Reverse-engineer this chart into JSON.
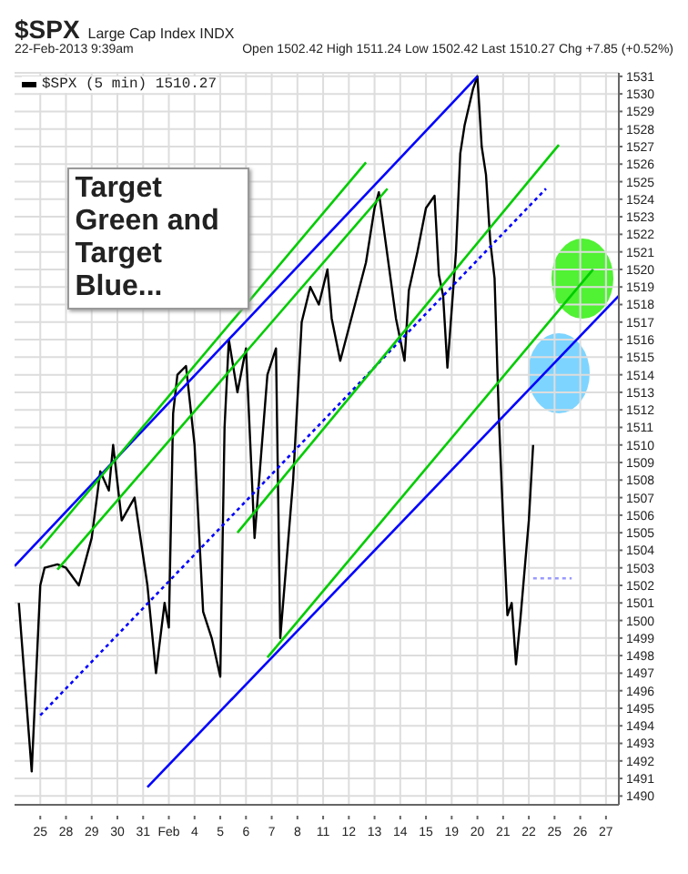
{
  "chart_data": {
    "type": "line",
    "title": "$SPX",
    "subtitle": "Large Cap Index INDX",
    "annotations": [
      "22-Feb-2013 9:39am",
      "Open 1502.42 High 1511.24 Low 1502.42 Last 1510.27 Chg +7.85 (+0.52%)",
      "Target Green and Target Blue..."
    ],
    "categories": [
      null,
      null,
      null,
      null,
      null,
      null,
      "25",
      null,
      null,
      null,
      null,
      null,
      "28",
      null,
      null,
      null,
      null,
      null,
      "29",
      null,
      null,
      null,
      null,
      null,
      "30",
      null,
      null,
      null,
      null,
      null,
      "31",
      null,
      null,
      null,
      null,
      null,
      "Feb",
      null,
      null,
      null,
      null,
      null,
      "4",
      null,
      null,
      null,
      null,
      null,
      "5",
      null,
      null,
      null,
      null,
      null,
      "6",
      null,
      null,
      null,
      null,
      null,
      "7",
      null,
      null,
      null,
      null,
      null,
      "8",
      null,
      null,
      null,
      null,
      null,
      "11",
      null,
      null,
      null,
      null,
      null,
      "12",
      null,
      null,
      null,
      null,
      null,
      "13",
      null,
      null,
      null,
      null,
      null,
      "14",
      null,
      null,
      null,
      null,
      null,
      "15",
      null,
      null,
      null,
      null,
      null,
      "19",
      null,
      null,
      null,
      null,
      null,
      "20",
      null,
      null,
      null,
      null,
      null,
      "21",
      null,
      null,
      null,
      null,
      null,
      "22",
      null,
      null,
      null,
      null,
      null,
      "25",
      null,
      null,
      null,
      null,
      null,
      "26",
      null,
      null,
      null,
      null,
      null,
      "27",
      null,
      null,
      null
    ],
    "ylim": [
      1489.5,
      1531.2
    ],
    "yticks": [
      1490,
      1491,
      1492,
      1493,
      1494,
      1495,
      1496,
      1497,
      1498,
      1499,
      1500,
      1501,
      1502,
      1503,
      1504,
      1505,
      1506,
      1507,
      1508,
      1509,
      1510,
      1511,
      1512,
      1513,
      1514,
      1515,
      1516,
      1517,
      1518,
      1519,
      1520,
      1521,
      1522,
      1523,
      1524,
      1525,
      1526,
      1527,
      1528,
      1529,
      1530,
      1531
    ],
    "grid": true,
    "legend": "top left",
    "marker": "none",
    "series": [
      {
        "name": "$SPX (5 min) 1510.27",
        "color": "#000000",
        "line_style": "solid",
        "values": [
          null,
          1501,
          null,
          null,
          1491.4,
          null,
          1502,
          1503,
          null,
          null,
          1503.2,
          null,
          1503,
          null,
          null,
          1502,
          null,
          null,
          1504.7,
          null,
          1508.5,
          null,
          1507.4,
          1510,
          null,
          1505.7,
          null,
          null,
          1507,
          null,
          null,
          1502,
          null,
          1497,
          null,
          1501,
          1499.6,
          1511.8,
          1514,
          null,
          1514.5,
          null,
          1510,
          null,
          1500.5,
          null,
          1499,
          null,
          1496.8,
          1511,
          1516,
          null,
          1513,
          null,
          1515.5,
          null,
          1504.7,
          null,
          null,
          1514,
          null,
          1515.5,
          1499,
          null,
          null,
          1508,
          null,
          1517,
          null,
          1519,
          null,
          1518,
          null,
          1520,
          1517.2,
          null,
          1514.8,
          null,
          null,
          null,
          null,
          null,
          1520.4,
          null,
          1523.5,
          1524.4,
          null,
          null,
          null,
          1517.2,
          null,
          1514.8,
          1518.8,
          null,
          1521,
          null,
          1523.5,
          null,
          1524.2,
          1519.7,
          1518.5,
          1514.4,
          null,
          1521,
          1526.6,
          1528.2,
          null,
          1530.3,
          1531,
          1527,
          1525.4,
          1521.6,
          1519.5,
          1511.6,
          1505.7,
          1500.3,
          1501,
          1497.5,
          1500,
          null,
          1505.7,
          1510,
          null,
          null,
          null,
          null,
          null,
          null,
          null,
          null,
          null,
          null,
          null,
          null,
          null,
          null,
          null,
          null,
          null,
          null,
          null,
          null
        ]
      },
      {
        "color": "#0000ff",
        "line_style": "solid",
        "values": [
          1503.1,
          null,
          null,
          null,
          null,
          null,
          null,
          null,
          null,
          null,
          null,
          null,
          null,
          null,
          null,
          null,
          null,
          null,
          null,
          null,
          null,
          null,
          null,
          null,
          null,
          null,
          null,
          null,
          null,
          null,
          null,
          null,
          null,
          null,
          null,
          null,
          null,
          null,
          null,
          null,
          null,
          null,
          null,
          null,
          null,
          null,
          null,
          null,
          null,
          null,
          null,
          null,
          null,
          null,
          null,
          null,
          null,
          null,
          null,
          null,
          null,
          null,
          null,
          null,
          null,
          null,
          null,
          null,
          null,
          null,
          null,
          null,
          null,
          null,
          null,
          null,
          null,
          null,
          null,
          null,
          null,
          null,
          null,
          null,
          null,
          null,
          null,
          null,
          null,
          null,
          null,
          null,
          null,
          null,
          null,
          null,
          null,
          null,
          null,
          null,
          null,
          null,
          null,
          null,
          null,
          null,
          null,
          null,
          1531,
          null,
          null,
          null,
          null,
          null,
          null,
          null,
          null,
          null,
          null,
          null,
          null,
          null,
          null,
          null,
          null,
          null,
          null,
          null,
          null,
          null,
          null,
          null,
          null,
          null,
          null,
          null,
          null,
          null,
          null,
          null,
          null,
          null
        ]
      },
      {
        "color": "#0000ff",
        "line_style": "solid",
        "values": [
          null,
          null,
          null,
          null,
          null,
          null,
          null,
          null,
          null,
          null,
          null,
          null,
          null,
          null,
          null,
          null,
          null,
          null,
          null,
          null,
          null,
          null,
          null,
          null,
          null,
          null,
          null,
          null,
          null,
          null,
          null,
          1490.5,
          null,
          null,
          null,
          null,
          null,
          null,
          null,
          null,
          null,
          null,
          null,
          null,
          null,
          null,
          null,
          null,
          null,
          null,
          null,
          null,
          null,
          null,
          null,
          null,
          null,
          null,
          null,
          null,
          null,
          null,
          null,
          null,
          null,
          null,
          null,
          null,
          null,
          null,
          null,
          null,
          null,
          null,
          null,
          null,
          null,
          null,
          null,
          null,
          null,
          null,
          null,
          null,
          null,
          null,
          null,
          null,
          null,
          null,
          null,
          null,
          null,
          null,
          null,
          null,
          null,
          null,
          null,
          null,
          null,
          null,
          null,
          null,
          null,
          null,
          null,
          null,
          null,
          null,
          null,
          null,
          null,
          null,
          null,
          null,
          null,
          null,
          null,
          null,
          null,
          null,
          null,
          null,
          null,
          null,
          null,
          null,
          null,
          null,
          null,
          null,
          null,
          null,
          null,
          null,
          null,
          null,
          null,
          null,
          null,
          1518.5
        ]
      },
      {
        "color": "#0000ff",
        "line_style": "dotted",
        "values": [
          null,
          null,
          null,
          null,
          null,
          null,
          1494.6,
          null,
          null,
          null,
          null,
          null,
          null,
          null,
          null,
          null,
          null,
          null,
          null,
          null,
          null,
          null,
          null,
          null,
          null,
          null,
          null,
          null,
          null,
          null,
          null,
          null,
          null,
          null,
          null,
          null,
          null,
          null,
          null,
          null,
          null,
          null,
          null,
          null,
          null,
          null,
          null,
          null,
          null,
          null,
          null,
          null,
          null,
          null,
          null,
          null,
          null,
          null,
          null,
          null,
          null,
          null,
          null,
          null,
          null,
          null,
          null,
          null,
          null,
          null,
          null,
          null,
          null,
          null,
          null,
          null,
          null,
          null,
          null,
          null,
          null,
          null,
          null,
          null,
          null,
          null,
          null,
          null,
          null,
          null,
          null,
          null,
          null,
          null,
          null,
          null,
          null,
          null,
          null,
          null,
          null,
          null,
          null,
          null,
          null,
          null,
          null,
          null,
          null,
          null,
          null,
          null,
          null,
          null,
          null,
          null,
          null,
          null,
          null,
          null,
          null,
          null,
          null,
          null,
          1524.6,
          null,
          null,
          null,
          null,
          null,
          null,
          null,
          null,
          null,
          null,
          null,
          null,
          null,
          null,
          null,
          null,
          null
        ]
      },
      {
        "color": "#00cc00",
        "line_style": "solid",
        "values": [
          null,
          null,
          null,
          null,
          null,
          null,
          1504.1,
          null,
          null,
          null,
          null,
          null,
          null,
          null,
          null,
          null,
          null,
          null,
          null,
          null,
          null,
          null,
          null,
          null,
          null,
          null,
          null,
          null,
          null,
          null,
          null,
          null,
          null,
          null,
          null,
          null,
          null,
          null,
          null,
          null,
          null,
          null,
          null,
          null,
          null,
          null,
          null,
          null,
          null,
          null,
          null,
          null,
          null,
          null,
          null,
          null,
          null,
          null,
          null,
          null,
          null,
          null,
          null,
          null,
          null,
          null,
          null,
          null,
          null,
          null,
          null,
          null,
          null,
          null,
          null,
          null,
          null,
          null,
          null,
          null,
          null,
          null,
          1526.1,
          null,
          null,
          null,
          null,
          null,
          null,
          null,
          null,
          null,
          null,
          null,
          null,
          null,
          null,
          null,
          null,
          null,
          null,
          null,
          null,
          null,
          null,
          null,
          null,
          null,
          null,
          null,
          null,
          null,
          null,
          null,
          null,
          null,
          null,
          null,
          null,
          null,
          null,
          null,
          null,
          null,
          null,
          null,
          null,
          null,
          null,
          null,
          null,
          null,
          null,
          null,
          null,
          null,
          null,
          null,
          null,
          null,
          null,
          null
        ]
      },
      {
        "color": "#00cc00",
        "line_style": "solid",
        "values": [
          null,
          null,
          null,
          null,
          null,
          null,
          null,
          null,
          null,
          null,
          1502.9,
          null,
          null,
          null,
          null,
          null,
          null,
          null,
          null,
          null,
          null,
          null,
          null,
          null,
          null,
          null,
          null,
          null,
          null,
          null,
          null,
          null,
          null,
          null,
          null,
          null,
          null,
          null,
          null,
          null,
          null,
          null,
          null,
          null,
          null,
          null,
          null,
          null,
          null,
          null,
          null,
          null,
          null,
          null,
          null,
          null,
          null,
          null,
          null,
          null,
          null,
          null,
          null,
          null,
          null,
          null,
          null,
          null,
          null,
          null,
          null,
          null,
          null,
          null,
          null,
          null,
          null,
          null,
          null,
          null,
          null,
          null,
          null,
          null,
          null,
          null,
          null,
          1524.6,
          null,
          null,
          null,
          null,
          null,
          null,
          null,
          null,
          null,
          null,
          null,
          null,
          null,
          null,
          null,
          null,
          null,
          null,
          null,
          null,
          null,
          null,
          null,
          null,
          null,
          null,
          null,
          null,
          null,
          null,
          null,
          null,
          null,
          null,
          null,
          null,
          null,
          null,
          null,
          null,
          null,
          null,
          null,
          null,
          null,
          null,
          null,
          null,
          null,
          null,
          null,
          null,
          null,
          null
        ]
      },
      {
        "color": "#00cc00",
        "line_style": "solid",
        "values": [
          null,
          null,
          null,
          null,
          null,
          null,
          null,
          null,
          null,
          null,
          null,
          null,
          null,
          null,
          null,
          null,
          null,
          null,
          null,
          null,
          null,
          null,
          null,
          null,
          null,
          null,
          null,
          null,
          null,
          null,
          null,
          null,
          null,
          null,
          null,
          null,
          null,
          null,
          null,
          null,
          null,
          null,
          null,
          null,
          null,
          null,
          null,
          null,
          null,
          null,
          null,
          null,
          1505,
          null,
          null,
          null,
          null,
          null,
          null,
          null,
          null,
          null,
          null,
          null,
          null,
          null,
          null,
          null,
          null,
          null,
          null,
          null,
          null,
          null,
          null,
          null,
          null,
          null,
          null,
          null,
          null,
          null,
          null,
          null,
          null,
          null,
          null,
          null,
          null,
          null,
          null,
          null,
          null,
          null,
          null,
          null,
          null,
          null,
          null,
          null,
          null,
          null,
          null,
          null,
          null,
          null,
          null,
          null,
          null,
          null,
          null,
          null,
          null,
          null,
          null,
          null,
          null,
          null,
          null,
          null,
          null,
          null,
          null,
          null,
          null,
          null,
          null,
          1527.1,
          null,
          null,
          null,
          null,
          null,
          null,
          null,
          null,
          null,
          null,
          null,
          null,
          null,
          null
        ]
      },
      {
        "color": "#00cc00",
        "line_style": "solid",
        "values": [
          null,
          null,
          null,
          null,
          null,
          null,
          null,
          null,
          null,
          null,
          null,
          null,
          null,
          null,
          null,
          null,
          null,
          null,
          null,
          null,
          null,
          null,
          null,
          null,
          null,
          null,
          null,
          null,
          null,
          null,
          null,
          null,
          null,
          null,
          null,
          null,
          null,
          null,
          null,
          null,
          null,
          null,
          null,
          null,
          null,
          null,
          null,
          null,
          null,
          null,
          null,
          null,
          null,
          null,
          null,
          null,
          null,
          null,
          null,
          1497.9,
          null,
          null,
          null,
          null,
          null,
          null,
          null,
          null,
          null,
          null,
          null,
          null,
          null,
          null,
          null,
          null,
          null,
          null,
          null,
          null,
          null,
          null,
          null,
          null,
          null,
          null,
          null,
          null,
          null,
          null,
          null,
          null,
          null,
          null,
          null,
          null,
          null,
          null,
          null,
          null,
          null,
          null,
          null,
          null,
          null,
          null,
          null,
          null,
          null,
          null,
          null,
          null,
          null,
          null,
          null,
          null,
          null,
          null,
          null,
          null,
          null,
          null,
          null,
          null,
          null,
          null,
          null,
          null,
          null,
          null,
          null,
          null,
          null,
          null,
          null,
          1520,
          null,
          null,
          null,
          null,
          null,
          null
        ]
      },
      {
        "color": "#9999ff",
        "line_style": "dotted",
        "values": [
          null,
          null,
          null,
          null,
          null,
          null,
          null,
          null,
          null,
          null,
          null,
          null,
          null,
          null,
          null,
          null,
          null,
          null,
          null,
          null,
          null,
          null,
          null,
          null,
          null,
          null,
          null,
          null,
          null,
          null,
          null,
          null,
          null,
          null,
          null,
          null,
          null,
          null,
          null,
          null,
          null,
          null,
          null,
          null,
          null,
          null,
          null,
          null,
          null,
          null,
          null,
          null,
          null,
          null,
          null,
          null,
          null,
          null,
          null,
          null,
          null,
          null,
          null,
          null,
          null,
          null,
          null,
          null,
          null,
          null,
          null,
          null,
          null,
          null,
          null,
          null,
          null,
          null,
          null,
          null,
          null,
          null,
          null,
          null,
          null,
          null,
          null,
          null,
          null,
          null,
          null,
          null,
          null,
          null,
          null,
          null,
          null,
          null,
          null,
          null,
          null,
          null,
          null,
          null,
          null,
          null,
          null,
          null,
          null,
          null,
          null,
          null,
          null,
          null,
          null,
          null,
          null,
          null,
          null,
          null,
          null,
          1502.4,
          null,
          null,
          null,
          null,
          null,
          null,
          null,
          null,
          1502.4,
          null,
          null,
          null,
          null,
          null,
          null,
          null,
          null,
          null,
          null,
          null
        ]
      }
    ]
  }
}
